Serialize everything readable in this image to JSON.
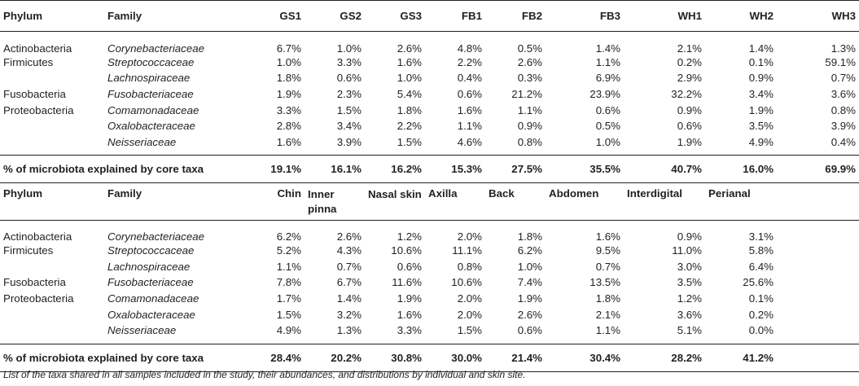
{
  "table1": {
    "headers": [
      "Phylum",
      "Family",
      "GS1",
      "GS2",
      "GS3",
      "FB1",
      "FB2",
      "FB3",
      "WH1",
      "WH2",
      "WH3"
    ],
    "rows": [
      [
        "Actinobacteria",
        "Corynebacteriaceae",
        "6.7%",
        "1.0%",
        "2.6%",
        "4.8%",
        "0.5%",
        "1.4%",
        "2.1%",
        "1.4%",
        "1.3%"
      ],
      [
        "Firmicutes",
        "Streptococcaceae",
        "1.0%",
        "3.3%",
        "1.6%",
        "2.2%",
        "2.6%",
        "1.1%",
        "0.2%",
        "0.1%",
        "59.1%"
      ],
      [
        "",
        "Lachnospiraceae",
        "1.8%",
        "0.6%",
        "1.0%",
        "0.4%",
        "0.3%",
        "6.9%",
        "2.9%",
        "0.9%",
        "0.7%"
      ],
      [
        "Fusobacteria",
        "Fusobacteriaceae",
        "1.9%",
        "2.3%",
        "5.4%",
        "0.6%",
        "21.2%",
        "23.9%",
        "32.2%",
        "3.4%",
        "3.6%"
      ],
      [
        "Proteobacteria",
        "Comamonadaceae",
        "3.3%",
        "1.5%",
        "1.8%",
        "1.6%",
        "1.1%",
        "0.6%",
        "0.9%",
        "1.9%",
        "0.8%"
      ],
      [
        "",
        "Oxalobacteraceae",
        "2.8%",
        "3.4%",
        "2.2%",
        "1.1%",
        "0.9%",
        "0.5%",
        "0.6%",
        "3.5%",
        "3.9%"
      ],
      [
        "",
        "Neisseriaceae",
        "1.6%",
        "3.9%",
        "1.5%",
        "4.6%",
        "0.8%",
        "1.0%",
        "1.9%",
        "4.9%",
        "0.4%"
      ]
    ],
    "total_label": "% of microbiota explained by core taxa",
    "totals": [
      "19.1%",
      "16.1%",
      "16.2%",
      "15.3%",
      "27.5%",
      "35.5%",
      "40.7%",
      "16.0%",
      "69.9%"
    ]
  },
  "table2": {
    "headers": [
      "Phylum",
      "Family",
      "Chin",
      "Inner pinna",
      "Nasal skin",
      "Axilla",
      "Back",
      "Abdomen",
      "Interdigital",
      "Perianal",
      ""
    ],
    "rows": [
      [
        "Actinobacteria",
        "Corynebacteriaceae",
        "6.2%",
        "2.6%",
        "1.2%",
        "2.0%",
        "1.8%",
        "1.6%",
        "0.9%",
        "3.1%"
      ],
      [
        "Firmicutes",
        "Streptococcaceae",
        "5.2%",
        "4.3%",
        "10.6%",
        "11.1%",
        "6.2%",
        "9.5%",
        "11.0%",
        "5.8%"
      ],
      [
        "",
        "Lachnospiraceae",
        "1.1%",
        "0.7%",
        "0.6%",
        "0.8%",
        "1.0%",
        "0.7%",
        "3.0%",
        "6.4%"
      ],
      [
        "Fusobacteria",
        "Fusobacteriaceae",
        "7.8%",
        "6.7%",
        "11.6%",
        "10.6%",
        "7.4%",
        "13.5%",
        "3.5%",
        "25.6%"
      ],
      [
        "Proteobacteria",
        "Comamonadaceae",
        "1.7%",
        "1.4%",
        "1.9%",
        "2.0%",
        "1.9%",
        "1.8%",
        "1.2%",
        "0.1%"
      ],
      [
        "",
        "Oxalobacteraceae",
        "1.5%",
        "3.2%",
        "1.6%",
        "2.0%",
        "2.6%",
        "2.1%",
        "3.6%",
        "0.2%"
      ],
      [
        "",
        "Neisseriaceae",
        "4.9%",
        "1.3%",
        "3.3%",
        "1.5%",
        "0.6%",
        "1.1%",
        "5.1%",
        "0.0%"
      ]
    ],
    "total_label": "% of microbiota explained by core taxa",
    "totals": [
      "28.4%",
      "20.2%",
      "30.8%",
      "30.0%",
      "21.4%",
      "30.4%",
      "28.2%",
      "41.2%"
    ]
  },
  "caption": "List of the taxa shared in all samples included in the study, their abundances, and distributions by individual and skin site."
}
